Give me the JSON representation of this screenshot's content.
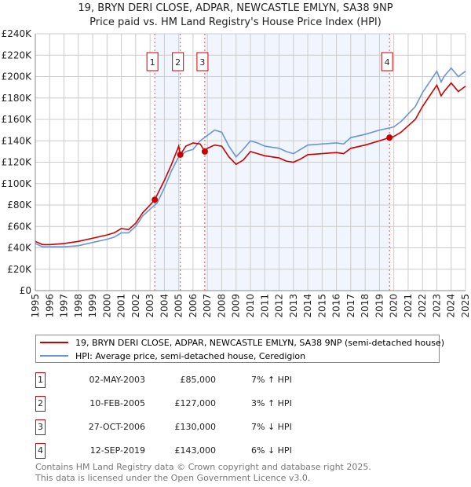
{
  "chart_data": {
    "type": "line",
    "title": "19, BRYN DERI CLOSE, ADPAR, NEWCASTLE EMLYN, SA38 9NP",
    "subtitle": "Price paid vs. HM Land Registry's House Price Index (HPI)",
    "xlim": [
      1995,
      2025
    ],
    "ylim": [
      0,
      240000
    ],
    "x_ticks": [
      "1995",
      "1996",
      "1997",
      "1998",
      "1999",
      "2000",
      "2001",
      "2002",
      "2003",
      "2004",
      "2005",
      "2006",
      "2007",
      "2008",
      "2009",
      "2010",
      "2011",
      "2012",
      "2013",
      "2014",
      "2015",
      "2016",
      "2017",
      "2018",
      "2019",
      "2020",
      "2021",
      "2022",
      "2023",
      "2024",
      "2025"
    ],
    "y_ticks": [
      {
        "v": 0,
        "label": "£0"
      },
      {
        "v": 20000,
        "label": "£20K"
      },
      {
        "v": 40000,
        "label": "£40K"
      },
      {
        "v": 60000,
        "label": "£60K"
      },
      {
        "v": 80000,
        "label": "£80K"
      },
      {
        "v": 100000,
        "label": "£100K"
      },
      {
        "v": 120000,
        "label": "£120K"
      },
      {
        "v": 140000,
        "label": "£140K"
      },
      {
        "v": 160000,
        "label": "£160K"
      },
      {
        "v": 180000,
        "label": "£180K"
      },
      {
        "v": 200000,
        "label": "£200K"
      },
      {
        "v": 220000,
        "label": "£220K"
      },
      {
        "v": 240000,
        "label": "£240K"
      }
    ],
    "grid": true,
    "series": [
      {
        "name": "19, BRYN DERI CLOSE, ADPAR, NEWCASTLE EMLYN, SA38 9NP (semi-detached house)",
        "color": "#cc0000",
        "x": [
          1995,
          1995.5,
          1996,
          1997,
          1998,
          1999,
          2000,
          2000.5,
          2001,
          2001.5,
          2002,
          2002.5,
          2003,
          2003.33,
          2004,
          2004.5,
          2005,
          2005.11,
          2005.5,
          2006,
          2006.5,
          2006.82,
          2007,
          2007.5,
          2008,
          2008.5,
          2009,
          2009.5,
          2010,
          2010.5,
          2011,
          2012,
          2012.5,
          2013,
          2013.5,
          2014,
          2015,
          2016,
          2016.5,
          2017,
          2018,
          2019,
          2019.7,
          2020,
          2020.5,
          2021,
          2021.5,
          2022,
          2022.5,
          2023,
          2023.3,
          2023.5,
          2024,
          2024.5,
          2025
        ],
        "y": [
          46000,
          43000,
          43000,
          44000,
          46000,
          49000,
          52000,
          54000,
          58000,
          57000,
          63000,
          73000,
          80000,
          85000,
          103000,
          118000,
          135000,
          127000,
          135000,
          138000,
          137000,
          130000,
          133000,
          136000,
          135000,
          125000,
          118000,
          122000,
          130000,
          128000,
          126000,
          124000,
          121000,
          120000,
          123000,
          127000,
          128000,
          129000,
          128000,
          133000,
          136000,
          140000,
          143000,
          144000,
          148000,
          154000,
          160000,
          172000,
          182000,
          192000,
          182000,
          186000,
          194000,
          186000,
          191000
        ]
      },
      {
        "name": "HPI: Average price, semi-detached house, Ceredigion",
        "color": "#6a96d4",
        "x": [
          1995,
          1995.5,
          1996,
          1997,
          1998,
          1999,
          2000,
          2000.5,
          2001,
          2001.5,
          2002,
          2002.5,
          2003,
          2003.5,
          2004,
          2004.5,
          2005,
          2005.5,
          2006,
          2006.5,
          2007,
          2007.5,
          2008,
          2008.5,
          2009,
          2009.5,
          2010,
          2010.5,
          2011,
          2012,
          2012.5,
          2013,
          2013.5,
          2014,
          2015,
          2016,
          2016.5,
          2017,
          2018,
          2019,
          2019.7,
          2020,
          2020.5,
          2021,
          2021.5,
          2022,
          2022.5,
          2023,
          2023.3,
          2023.5,
          2024,
          2024.5,
          2025
        ],
        "y": [
          44000,
          41000,
          41000,
          41000,
          42000,
          45000,
          48000,
          50000,
          54000,
          54000,
          60000,
          70000,
          76000,
          82000,
          96000,
          112000,
          125000,
          130000,
          132000,
          140000,
          145000,
          150000,
          148000,
          135000,
          125000,
          132000,
          140000,
          138000,
          135000,
          133000,
          130000,
          128000,
          132000,
          136000,
          137000,
          138000,
          137000,
          143000,
          146000,
          150000,
          152000,
          153000,
          158000,
          165000,
          172000,
          185000,
          195000,
          205000,
          195000,
          200000,
          208000,
          200000,
          205000
        ]
      }
    ],
    "sales": [
      {
        "n": "1",
        "x": 2003.33,
        "y": 85000,
        "date": "02-MAY-2003",
        "price": "£85,000",
        "hpi": "7% ↑ HPI"
      },
      {
        "n": "2",
        "x": 2005.11,
        "y": 127000,
        "date": "10-FEB-2005",
        "price": "£127,000",
        "hpi": "3% ↑ HPI"
      },
      {
        "n": "3",
        "x": 2006.82,
        "y": 130000,
        "date": "27-OCT-2006",
        "price": "£130,000",
        "hpi": "7% ↓ HPI"
      },
      {
        "n": "4",
        "x": 2019.7,
        "y": 143000,
        "date": "12-SEP-2019",
        "price": "£143,000",
        "hpi": "6% ↓ HPI"
      }
    ],
    "legend_position": "below"
  },
  "footer": {
    "line1": "Contains HM Land Registry data © Crown copyright and database right 2025.",
    "line2": "This data is licensed under the Open Government Licence v3.0."
  }
}
